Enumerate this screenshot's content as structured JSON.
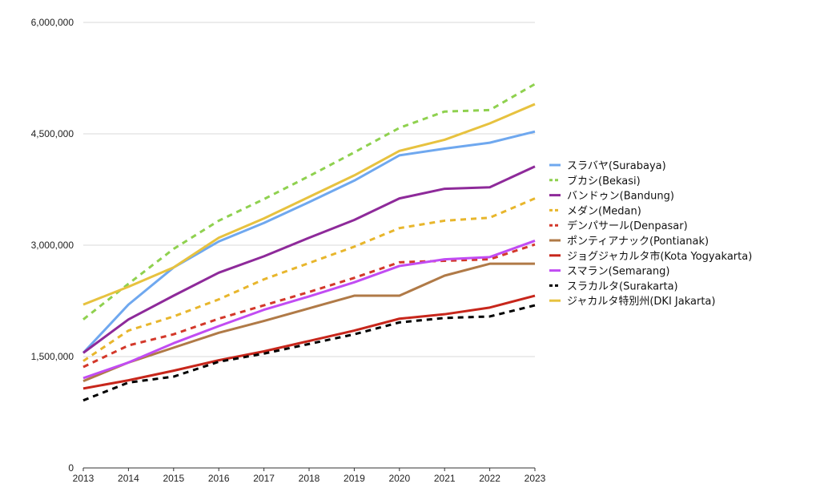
{
  "chart_data": {
    "type": "line",
    "title": "",
    "xlabel": "",
    "ylabel": "",
    "x": [
      2013,
      2014,
      2015,
      2016,
      2017,
      2018,
      2019,
      2020,
      2021,
      2022,
      2023
    ],
    "ylim": [
      0,
      6000000
    ],
    "yticks": [
      0,
      1500000,
      3000000,
      4500000,
      6000000
    ],
    "ytick_labels": [
      "0",
      "1,500,000",
      "3,000,000",
      "4,500,000",
      "6,000,000"
    ],
    "grid": true,
    "legend_position": "right",
    "series": [
      {
        "name": "スラバヤ(Surabaya)",
        "color": "#6fa8ef",
        "dash": "solid",
        "values": [
          1550000,
          2200000,
          2700000,
          3050000,
          3300000,
          3580000,
          3870000,
          4210000,
          4300000,
          4380000,
          4530000
        ]
      },
      {
        "name": "ブカシ(Bekasi)",
        "color": "#8fd14f",
        "dash": "dashed",
        "values": [
          2000000,
          2480000,
          2950000,
          3330000,
          3620000,
          3930000,
          4250000,
          4580000,
          4800000,
          4820000,
          5170000
        ]
      },
      {
        "name": "バンドゥン(Bandung)",
        "color": "#8e2a9a",
        "dash": "solid",
        "values": [
          1550000,
          2000000,
          2320000,
          2630000,
          2850000,
          3100000,
          3340000,
          3630000,
          3760000,
          3780000,
          4060000
        ]
      },
      {
        "name": "メダン(Medan)",
        "color": "#e8b62c",
        "dash": "dashed",
        "values": [
          1440000,
          1850000,
          2040000,
          2270000,
          2540000,
          2760000,
          2980000,
          3230000,
          3330000,
          3370000,
          3630000
        ]
      },
      {
        "name": "デンパサール(Denpasar)",
        "color": "#d3382a",
        "dash": "dashed",
        "values": [
          1360000,
          1650000,
          1800000,
          2010000,
          2190000,
          2370000,
          2560000,
          2770000,
          2790000,
          2810000,
          3010000
        ]
      },
      {
        "name": "ポンティアナック(Pontianak)",
        "color": "#b07a47",
        "dash": "solid",
        "values": [
          1170000,
          1420000,
          1620000,
          1820000,
          1980000,
          2150000,
          2320000,
          2320000,
          2590000,
          2750000,
          2750000
        ]
      },
      {
        "name": "ジョグジャカルタ市(Kota Yogyakarta)",
        "color": "#c7261b",
        "dash": "solid",
        "values": [
          1070000,
          1180000,
          1310000,
          1450000,
          1570000,
          1710000,
          1850000,
          2010000,
          2070000,
          2160000,
          2320000
        ]
      },
      {
        "name": "スマラン(Semarang)",
        "color": "#c14cf3",
        "dash": "solid",
        "values": [
          1210000,
          1420000,
          1680000,
          1910000,
          2130000,
          2310000,
          2500000,
          2720000,
          2810000,
          2840000,
          3060000
        ]
      },
      {
        "name": "スラカルタ(Surakarta)",
        "color": "#000000",
        "dash": "dashed",
        "values": [
          910000,
          1150000,
          1230000,
          1430000,
          1540000,
          1670000,
          1800000,
          1960000,
          2020000,
          2040000,
          2190000
        ]
      },
      {
        "name": "ジャカルタ特別州(DKI Jakarta)",
        "color": "#e7c23f",
        "dash": "solid",
        "values": [
          2200000,
          2440000,
          2700000,
          3100000,
          3360000,
          3650000,
          3940000,
          4270000,
          4420000,
          4640000,
          4900000
        ]
      }
    ]
  }
}
